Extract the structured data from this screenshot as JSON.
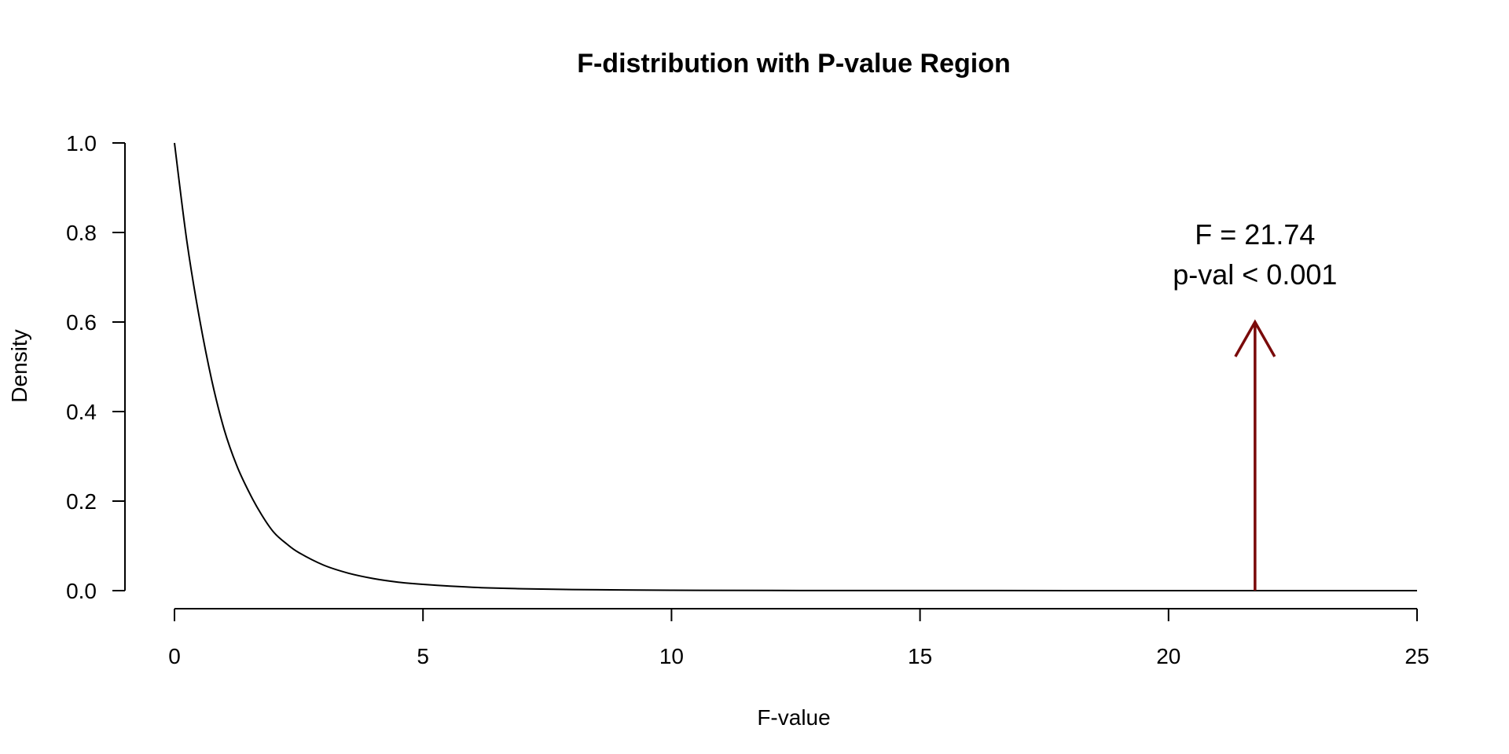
{
  "chart_data": {
    "type": "line",
    "title": "F-distribution with P-value Region",
    "xlabel": "F-value",
    "ylabel": "Density",
    "xlim": [
      0,
      25
    ],
    "ylim": [
      0,
      1
    ],
    "x_ticks": [
      0,
      5,
      10,
      15,
      20,
      25
    ],
    "x_tick_labels": [
      "0",
      "5",
      "10",
      "15",
      "20",
      "25"
    ],
    "y_ticks": [
      0,
      0.2,
      0.4,
      0.6,
      0.8,
      1.0
    ],
    "y_tick_labels": [
      "0.0",
      "0.2",
      "0.4",
      "0.6",
      "0.8",
      "1.0"
    ],
    "grid": false,
    "series": [
      {
        "x": [
          0,
          0.25,
          0.5,
          0.75,
          1,
          1.25,
          1.5,
          1.75,
          2,
          2.25,
          2.5,
          3,
          3.5,
          4,
          4.5,
          5,
          6,
          7,
          8,
          9,
          10,
          12,
          15,
          18,
          20,
          22,
          25
        ],
        "values": [
          1.0,
          0.78,
          0.61,
          0.47,
          0.36,
          0.28,
          0.22,
          0.17,
          0.13,
          0.105,
          0.085,
          0.057,
          0.039,
          0.027,
          0.019,
          0.014,
          0.0075,
          0.0042,
          0.0025,
          0.0015,
          0.0009,
          0.0004,
          0.00015,
          7e-05,
          4e-05,
          2e-05,
          1e-05
        ],
        "color": "#000000"
      }
    ],
    "annotation": {
      "line1": "F = 21.74",
      "line2": "p-val < 0.001",
      "x": 21.74,
      "arrow_from_y": 0,
      "arrow_to_y": 0.6,
      "color": "#7a0a0a"
    }
  }
}
